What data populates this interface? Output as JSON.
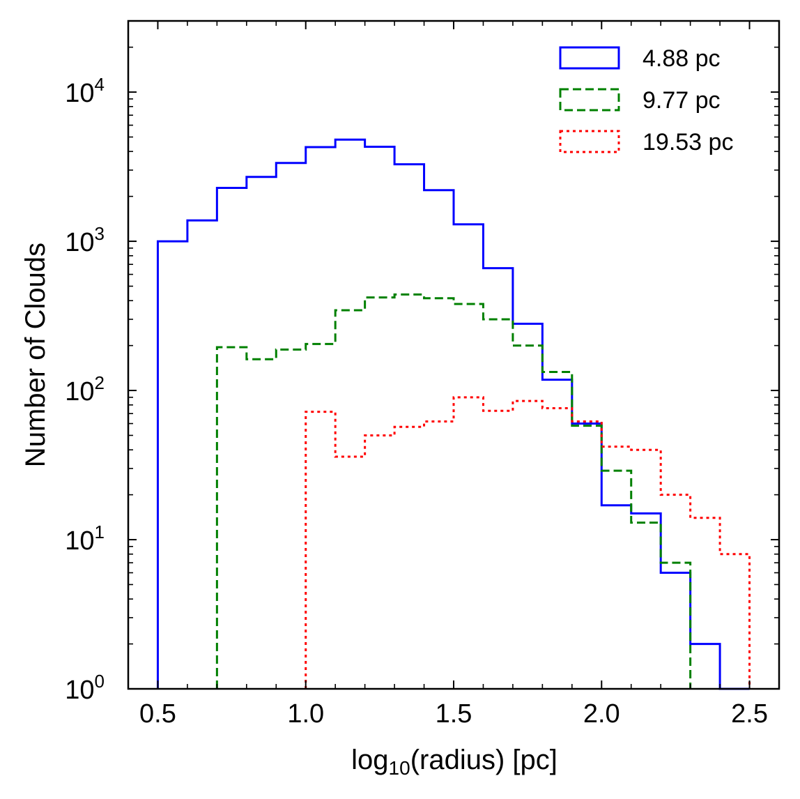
{
  "chart_data": {
    "type": "histogram",
    "xscale": "linear",
    "yscale": "log",
    "xlabel": {
      "prefix": "log",
      "subscript": "10",
      "suffix": "(radius) [pc]"
    },
    "ylabel": "Number of Clouds",
    "xlim": [
      0.4,
      2.6
    ],
    "ylim": [
      1,
      30000
    ],
    "xticks": [
      {
        "value": 0.5,
        "label": "0.5"
      },
      {
        "value": 1.0,
        "label": "1.0"
      },
      {
        "value": 1.5,
        "label": "1.5"
      },
      {
        "value": 2.0,
        "label": "2.0"
      },
      {
        "value": 2.5,
        "label": "2.5"
      }
    ],
    "yticks": [
      {
        "value": 1,
        "base": "10",
        "exp": "0"
      },
      {
        "value": 10,
        "base": "10",
        "exp": "1"
      },
      {
        "value": 100,
        "base": "10",
        "exp": "2"
      },
      {
        "value": 1000,
        "base": "10",
        "exp": "3"
      },
      {
        "value": 10000,
        "base": "10",
        "exp": "4"
      }
    ],
    "legend_position": "top-right",
    "series": [
      {
        "name": "4.88 pc",
        "color": "#0000ff",
        "dash": "solid",
        "bin_start": 0.5,
        "bin_width": 0.1,
        "values": [
          1000,
          1380,
          2280,
          2700,
          3350,
          4280,
          4800,
          4300,
          3280,
          2200,
          1300,
          660,
          280,
          118,
          60,
          17,
          15,
          6,
          2,
          1
        ]
      },
      {
        "name": "9.77 pc",
        "color": "#008000",
        "dash": "dashed",
        "bin_start": 0.7,
        "bin_width": 0.1,
        "values": [
          195,
          162,
          188,
          205,
          345,
          420,
          440,
          415,
          380,
          300,
          200,
          133,
          58,
          29,
          13,
          7
        ]
      },
      {
        "name": "19.53 pc",
        "color": "#ff0000",
        "dash": "dotted",
        "bin_start": 1.0,
        "bin_width": 0.1,
        "values": [
          72,
          36,
          50,
          57,
          62,
          90,
          73,
          85,
          76,
          62,
          42,
          40,
          20,
          14,
          8
        ]
      }
    ]
  }
}
